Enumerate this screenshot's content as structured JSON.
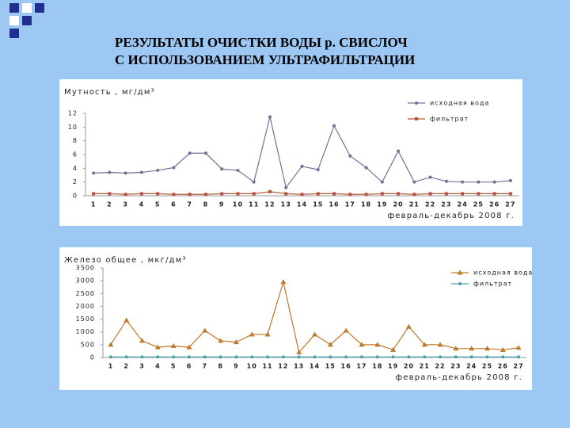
{
  "title": [
    "РЕЗУЛЬТАТЫ ОЧИСТКИ ВОДЫ р. СВИСЛОЧ",
    "С ИСПОЛЬЗОВАНИЕМ УЛЬТРАФИЛЬТРАЦИИ"
  ],
  "chart_data": [
    {
      "type": "line",
      "ylabel": "Мутность , мг/дм³",
      "xlabel": "февраль-декабрь 2008 г.",
      "categories": [
        "1",
        "2",
        "3",
        "4",
        "5",
        "6",
        "7",
        "8",
        "9",
        "10",
        "11",
        "12",
        "13",
        "14",
        "15",
        "16",
        "17",
        "18",
        "19",
        "20",
        "21",
        "22",
        "23",
        "24",
        "25",
        "26",
        "27"
      ],
      "ylim": [
        0,
        12
      ],
      "yticks": [
        0,
        2,
        4,
        6,
        8,
        10,
        12
      ],
      "grid": false,
      "legend": "top-right",
      "series": [
        {
          "name": "исходная вода",
          "color": "#6e7396",
          "marker": "circle",
          "values": [
            3.3,
            3.4,
            3.3,
            3.4,
            3.7,
            4.1,
            6.2,
            6.2,
            3.9,
            3.7,
            2.0,
            11.5,
            1.2,
            4.3,
            3.8,
            10.2,
            5.8,
            4.1,
            2.0,
            6.5,
            2.0,
            2.7,
            2.1,
            2.0,
            2.0,
            2.0,
            2.2
          ]
        },
        {
          "name": "фильтрат",
          "color": "#b5543a",
          "marker": "square",
          "values": [
            0.3,
            0.3,
            0.2,
            0.3,
            0.3,
            0.2,
            0.2,
            0.2,
            0.3,
            0.3,
            0.3,
            0.6,
            0.3,
            0.2,
            0.3,
            0.3,
            0.2,
            0.2,
            0.3,
            0.3,
            0.2,
            0.3,
            0.3,
            0.3,
            0.3,
            0.3,
            0.3
          ]
        }
      ]
    },
    {
      "type": "line",
      "ylabel": "Железо общее , мкг/дм³",
      "xlabel": "февраль-декабрь 2008 г.",
      "categories": [
        "1",
        "2",
        "3",
        "4",
        "5",
        "6",
        "7",
        "8",
        "9",
        "10",
        "11",
        "12",
        "13",
        "14",
        "15",
        "16",
        "17",
        "18",
        "19",
        "20",
        "21",
        "22",
        "23",
        "24",
        "25",
        "26",
        "27"
      ],
      "ylim": [
        0,
        3500
      ],
      "yticks": [
        0,
        500,
        1000,
        1500,
        2000,
        2500,
        3000,
        3500
      ],
      "grid": false,
      "legend": "right",
      "series": [
        {
          "name": "исходная вода",
          "color": "#c0782a",
          "marker": "triangle",
          "values": [
            500,
            1450,
            650,
            400,
            450,
            400,
            1050,
            650,
            600,
            900,
            900,
            2950,
            200,
            900,
            500,
            1050,
            500,
            500,
            300,
            1200,
            500,
            500,
            350,
            350,
            350,
            300,
            380
          ]
        },
        {
          "name": "фильтрат",
          "color": "#4f9fa8",
          "marker": "circle",
          "values": [
            20,
            20,
            20,
            20,
            20,
            20,
            20,
            20,
            20,
            20,
            20,
            20,
            20,
            20,
            20,
            20,
            20,
            20,
            20,
            20,
            20,
            20,
            20,
            20,
            20,
            20,
            20
          ]
        }
      ]
    }
  ]
}
